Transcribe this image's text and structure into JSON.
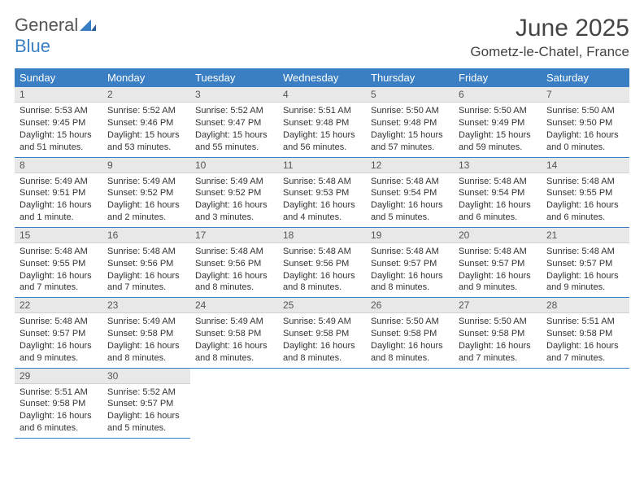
{
  "logo": {
    "text_general": "General",
    "text_blue": "Blue"
  },
  "header": {
    "month_title": "June 2025",
    "location": "Gometz-le-Chatel, France"
  },
  "colors": {
    "header_bg": "#3a7fc4",
    "header_text": "#ffffff",
    "daynum_bg": "#e8e8e8",
    "row_border": "#3a7fc4",
    "body_text": "#333333"
  },
  "weekdays": [
    "Sunday",
    "Monday",
    "Tuesday",
    "Wednesday",
    "Thursday",
    "Friday",
    "Saturday"
  ],
  "weeks": [
    [
      {
        "n": "1",
        "sr": "5:53 AM",
        "ss": "9:45 PM",
        "dl": "15 hours and 51 minutes."
      },
      {
        "n": "2",
        "sr": "5:52 AM",
        "ss": "9:46 PM",
        "dl": "15 hours and 53 minutes."
      },
      {
        "n": "3",
        "sr": "5:52 AM",
        "ss": "9:47 PM",
        "dl": "15 hours and 55 minutes."
      },
      {
        "n": "4",
        "sr": "5:51 AM",
        "ss": "9:48 PM",
        "dl": "15 hours and 56 minutes."
      },
      {
        "n": "5",
        "sr": "5:50 AM",
        "ss": "9:48 PM",
        "dl": "15 hours and 57 minutes."
      },
      {
        "n": "6",
        "sr": "5:50 AM",
        "ss": "9:49 PM",
        "dl": "15 hours and 59 minutes."
      },
      {
        "n": "7",
        "sr": "5:50 AM",
        "ss": "9:50 PM",
        "dl": "16 hours and 0 minutes."
      }
    ],
    [
      {
        "n": "8",
        "sr": "5:49 AM",
        "ss": "9:51 PM",
        "dl": "16 hours and 1 minute."
      },
      {
        "n": "9",
        "sr": "5:49 AM",
        "ss": "9:52 PM",
        "dl": "16 hours and 2 minutes."
      },
      {
        "n": "10",
        "sr": "5:49 AM",
        "ss": "9:52 PM",
        "dl": "16 hours and 3 minutes."
      },
      {
        "n": "11",
        "sr": "5:48 AM",
        "ss": "9:53 PM",
        "dl": "16 hours and 4 minutes."
      },
      {
        "n": "12",
        "sr": "5:48 AM",
        "ss": "9:54 PM",
        "dl": "16 hours and 5 minutes."
      },
      {
        "n": "13",
        "sr": "5:48 AM",
        "ss": "9:54 PM",
        "dl": "16 hours and 6 minutes."
      },
      {
        "n": "14",
        "sr": "5:48 AM",
        "ss": "9:55 PM",
        "dl": "16 hours and 6 minutes."
      }
    ],
    [
      {
        "n": "15",
        "sr": "5:48 AM",
        "ss": "9:55 PM",
        "dl": "16 hours and 7 minutes."
      },
      {
        "n": "16",
        "sr": "5:48 AM",
        "ss": "9:56 PM",
        "dl": "16 hours and 7 minutes."
      },
      {
        "n": "17",
        "sr": "5:48 AM",
        "ss": "9:56 PM",
        "dl": "16 hours and 8 minutes."
      },
      {
        "n": "18",
        "sr": "5:48 AM",
        "ss": "9:56 PM",
        "dl": "16 hours and 8 minutes."
      },
      {
        "n": "19",
        "sr": "5:48 AM",
        "ss": "9:57 PM",
        "dl": "16 hours and 8 minutes."
      },
      {
        "n": "20",
        "sr": "5:48 AM",
        "ss": "9:57 PM",
        "dl": "16 hours and 9 minutes."
      },
      {
        "n": "21",
        "sr": "5:48 AM",
        "ss": "9:57 PM",
        "dl": "16 hours and 9 minutes."
      }
    ],
    [
      {
        "n": "22",
        "sr": "5:48 AM",
        "ss": "9:57 PM",
        "dl": "16 hours and 9 minutes."
      },
      {
        "n": "23",
        "sr": "5:49 AM",
        "ss": "9:58 PM",
        "dl": "16 hours and 8 minutes."
      },
      {
        "n": "24",
        "sr": "5:49 AM",
        "ss": "9:58 PM",
        "dl": "16 hours and 8 minutes."
      },
      {
        "n": "25",
        "sr": "5:49 AM",
        "ss": "9:58 PM",
        "dl": "16 hours and 8 minutes."
      },
      {
        "n": "26",
        "sr": "5:50 AM",
        "ss": "9:58 PM",
        "dl": "16 hours and 8 minutes."
      },
      {
        "n": "27",
        "sr": "5:50 AM",
        "ss": "9:58 PM",
        "dl": "16 hours and 7 minutes."
      },
      {
        "n": "28",
        "sr": "5:51 AM",
        "ss": "9:58 PM",
        "dl": "16 hours and 7 minutes."
      }
    ],
    [
      {
        "n": "29",
        "sr": "5:51 AM",
        "ss": "9:58 PM",
        "dl": "16 hours and 6 minutes."
      },
      {
        "n": "30",
        "sr": "5:52 AM",
        "ss": "9:57 PM",
        "dl": "16 hours and 5 minutes."
      },
      null,
      null,
      null,
      null,
      null
    ]
  ],
  "labels": {
    "sunrise": "Sunrise: ",
    "sunset": "Sunset: ",
    "daylight": "Daylight: "
  }
}
